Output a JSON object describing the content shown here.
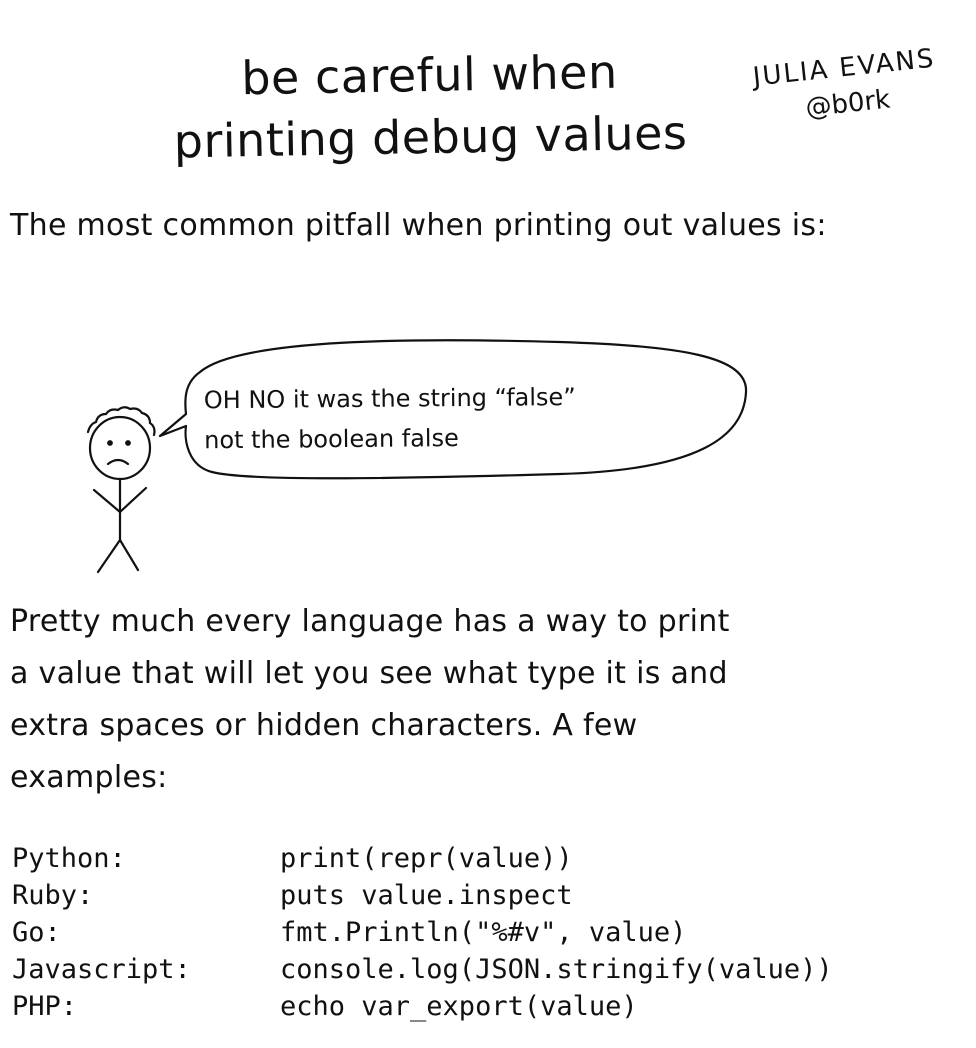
{
  "title": {
    "line1": "be careful when",
    "line2": "printing debug values"
  },
  "author": {
    "name": "JULIA EVANS",
    "handle": "@b0rk"
  },
  "intro": "The most common pitfall when printing out values is:",
  "speech_bubble": {
    "line1": "OH NO it was the string “false”",
    "line2": "not the boolean false"
  },
  "body": {
    "line1": "Pretty much every language has a way to print",
    "line2": "a value that will let you see what type it is and",
    "line3": "extra spaces or hidden characters. A few",
    "line4": "examples:"
  },
  "examples": [
    {
      "language": "Python:",
      "code": "print(repr(value))"
    },
    {
      "language": "Ruby:",
      "code": "puts value.inspect"
    },
    {
      "language": "Go:",
      "code": "fmt.Println(\"%#v\", value)"
    },
    {
      "language": "Javascript:",
      "code": "console.log(JSON.stringify(value))"
    },
    {
      "language": "PHP:",
      "code": "echo var_export(value)"
    }
  ]
}
